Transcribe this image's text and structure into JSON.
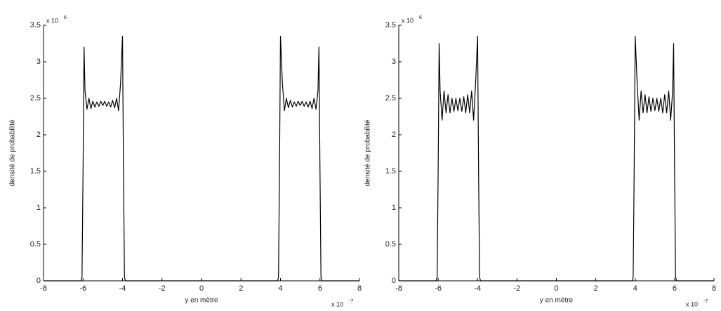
{
  "chart_data": [
    {
      "type": "line",
      "color": "#000000",
      "ylabel": "densité de probabilité",
      "xlabel": "y en mètre",
      "y_multiplier": "x 10",
      "y_multiplier_exp": "6",
      "x_multiplier": "x 10",
      "x_multiplier_exp": "-7",
      "xlim": [
        -8,
        8
      ],
      "xticks": [
        -8,
        -6,
        -4,
        -2,
        0,
        2,
        4,
        6,
        8
      ],
      "ylim": [
        0,
        3.5
      ],
      "yticks": [
        0,
        0.5,
        1,
        1.5,
        2,
        2.5,
        3,
        3.5
      ],
      "x": [
        -8,
        -6.1,
        -6.05,
        -6.0,
        -5.95,
        -5.9,
        -5.8,
        -5.7,
        -5.6,
        -5.5,
        -5.4,
        -5.3,
        -5.2,
        -5.1,
        -5.0,
        -4.9,
        -4.8,
        -4.7,
        -4.6,
        -4.5,
        -4.4,
        -4.3,
        -4.2,
        -4.1,
        -4.0,
        -3.95,
        -3.9,
        -3.85,
        3.85,
        3.9,
        3.95,
        4.0,
        4.1,
        4.2,
        4.3,
        4.4,
        4.5,
        4.6,
        4.7,
        4.8,
        4.9,
        5.0,
        5.1,
        5.2,
        5.3,
        5.4,
        5.5,
        5.6,
        5.7,
        5.8,
        5.9,
        5.95,
        6.0,
        6.05,
        6.1,
        8
      ],
      "values": [
        0,
        0,
        0.05,
        1.5,
        3.2,
        2.6,
        2.35,
        2.5,
        2.36,
        2.46,
        2.38,
        2.45,
        2.39,
        2.46,
        2.4,
        2.46,
        2.39,
        2.45,
        2.38,
        2.47,
        2.37,
        2.5,
        2.33,
        2.7,
        3.35,
        1.5,
        0.05,
        0,
        0,
        0.05,
        1.5,
        3.35,
        2.7,
        2.33,
        2.5,
        2.37,
        2.47,
        2.38,
        2.45,
        2.39,
        2.46,
        2.4,
        2.46,
        2.39,
        2.45,
        2.38,
        2.46,
        2.36,
        2.5,
        2.35,
        2.6,
        3.2,
        1.5,
        0.05,
        0,
        0
      ]
    },
    {
      "type": "line",
      "color": "#000000",
      "ylabel": "densité de probabilité",
      "xlabel": "y en mètre",
      "y_multiplier": "x 10",
      "y_multiplier_exp": "6",
      "x_multiplier": "x 10",
      "x_multiplier_exp": "-7",
      "xlim": [
        -8,
        8
      ],
      "xticks": [
        -8,
        -6,
        -4,
        -2,
        0,
        2,
        4,
        6,
        8
      ],
      "ylim": [
        0,
        3.5
      ],
      "yticks": [
        0,
        0.5,
        1,
        1.5,
        2,
        2.5,
        3,
        3.5
      ],
      "x": [
        -8,
        -6.1,
        -6.05,
        -6.0,
        -5.95,
        -5.9,
        -5.8,
        -5.7,
        -5.6,
        -5.5,
        -5.4,
        -5.3,
        -5.2,
        -5.1,
        -5.0,
        -4.9,
        -4.8,
        -4.7,
        -4.6,
        -4.5,
        -4.4,
        -4.3,
        -4.2,
        -4.1,
        -4.0,
        -3.95,
        -3.9,
        -3.85,
        3.85,
        3.9,
        3.95,
        4.0,
        4.1,
        4.2,
        4.3,
        4.4,
        4.5,
        4.6,
        4.7,
        4.8,
        4.9,
        5.0,
        5.1,
        5.2,
        5.3,
        5.4,
        5.5,
        5.6,
        5.7,
        5.8,
        5.9,
        5.95,
        6.0,
        6.05,
        6.1,
        8
      ],
      "values": [
        0,
        0,
        0.05,
        1.5,
        3.25,
        2.6,
        2.2,
        2.6,
        2.3,
        2.55,
        2.3,
        2.5,
        2.32,
        2.5,
        2.33,
        2.5,
        2.32,
        2.52,
        2.3,
        2.55,
        2.3,
        2.6,
        2.2,
        2.7,
        3.35,
        1.5,
        0.05,
        0,
        0,
        0.05,
        1.5,
        3.35,
        2.7,
        2.2,
        2.6,
        2.3,
        2.55,
        2.3,
        2.52,
        2.32,
        2.5,
        2.33,
        2.5,
        2.32,
        2.5,
        2.3,
        2.55,
        2.3,
        2.6,
        2.2,
        2.6,
        3.25,
        1.5,
        0.05,
        0,
        0
      ]
    }
  ]
}
